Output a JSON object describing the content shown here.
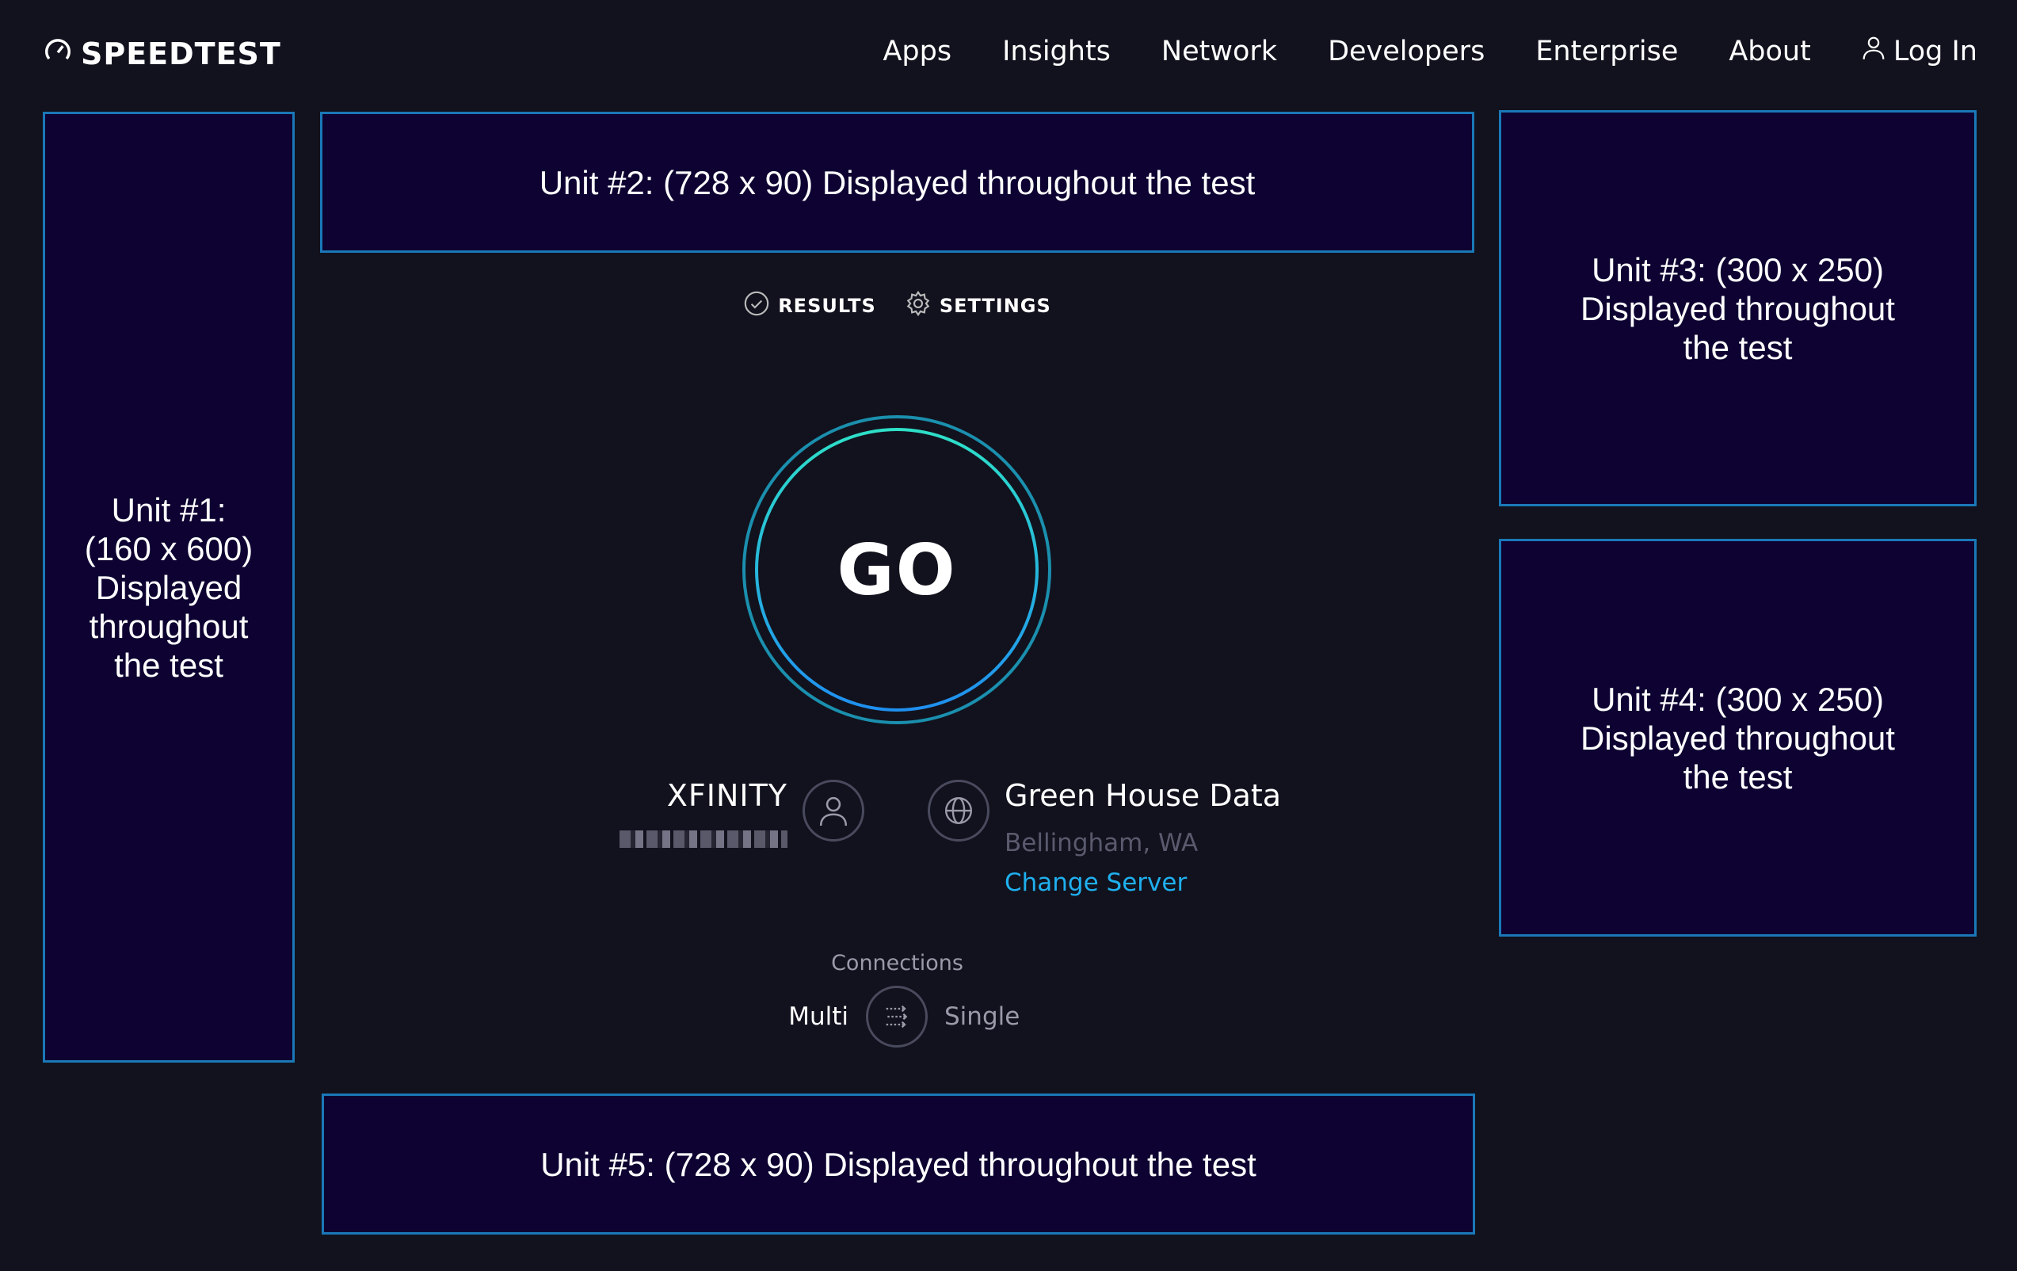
{
  "header": {
    "logo": "SPEEDTEST",
    "nav": [
      "Apps",
      "Insights",
      "Network",
      "Developers",
      "Enterprise",
      "About"
    ],
    "login": "Log In"
  },
  "ads": {
    "unit1": [
      "Unit #1:",
      "(160 x 600)",
      "Displayed",
      "throughout",
      "the test"
    ],
    "unit2": "Unit #2: (728 x 90) Displayed throughout the test",
    "unit3": [
      "Unit #3: (300 x 250)",
      "Displayed throughout",
      "the test"
    ],
    "unit4": [
      "Unit #4: (300 x 250)",
      "Displayed throughout",
      "the test"
    ],
    "unit5": "Unit #5: (728 x 90) Displayed throughout the test"
  },
  "tabs": {
    "results": "RESULTS",
    "settings": "SETTINGS"
  },
  "go_label": "GO",
  "isp": {
    "name": "XFINITY"
  },
  "server": {
    "name": "Green House Data",
    "location": "Bellingham, WA",
    "change": "Change Server"
  },
  "connections": {
    "label": "Connections",
    "multi": "Multi",
    "single": "Single",
    "selected": "Multi"
  },
  "colors": {
    "background": "#11121d",
    "ad_fill": "#0d0231",
    "ad_border": "#1a78b8",
    "link": "#1fb0f0"
  }
}
